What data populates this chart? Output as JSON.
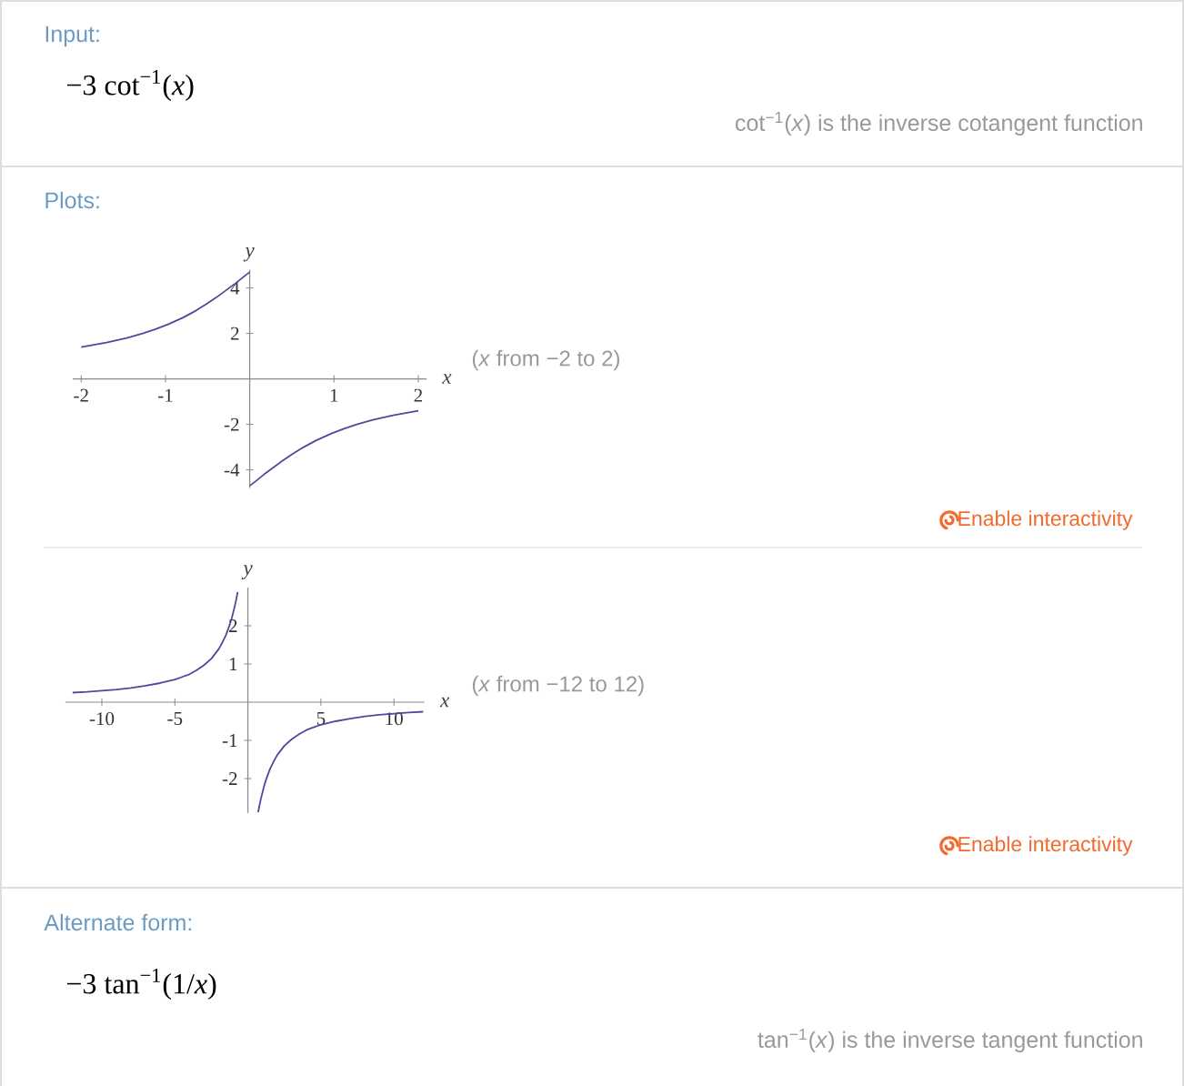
{
  "chart_data": [
    {
      "type": "other",
      "title": "Input:",
      "annotations": [
        "−3 cot$^{−1}$(*x*)",
        "cot$^{−1}$(*x*) is the inverse cotangent function"
      ]
    },
    {
      "type": "line",
      "title": "Plots:",
      "xlabel": "x",
      "ylabel": "y",
      "series": [
        {
          "color": "#4b4b9c",
          "x": [
            -2,
            -1.7,
            -1.46,
            -1.27,
            -1.11,
            -0.97,
            -0.79,
            -0.64,
            -0.51,
            -0.39,
            -0.28,
            -0.17,
            -0.07,
            0
          ],
          "values": [
            1.4,
            1.6,
            1.8,
            2.0,
            2.2,
            2.4,
            2.7,
            3.0,
            3.3,
            3.6,
            3.9,
            4.2,
            4.5,
            4.7
          ]
        },
        {
          "color": "#4b4b9c",
          "x": [
            0,
            0.07,
            0.17,
            0.28,
            0.39,
            0.51,
            0.64,
            0.79,
            0.97,
            1.11,
            1.27,
            1.46,
            1.7,
            2
          ],
          "values": [
            -4.7,
            -4.5,
            -4.2,
            -3.9,
            -3.6,
            -3.3,
            -3.0,
            -2.7,
            -2.4,
            -2.2,
            -2.0,
            -1.8,
            -1.6,
            -1.4
          ]
        }
      ],
      "xlim": [
        -2.1,
        2.1
      ],
      "ylim": [
        -4.8,
        4.8
      ],
      "xticks": [
        -2,
        -1,
        1,
        2
      ],
      "yticks": [
        -4,
        -2,
        2,
        4
      ],
      "marker": "none",
      "annotations": [
        "(*x* from −2 to 2)",
        "Enable interactivity"
      ]
    },
    {
      "type": "line",
      "xlabel": "x",
      "ylabel": "y",
      "series": [
        {
          "color": "#4b4b9c",
          "x": [
            -12,
            -11,
            -10,
            -9,
            -8,
            -7,
            -6,
            -5,
            -4.5,
            -4,
            -3.5,
            -3,
            -2.5,
            -2,
            -1.75,
            -1.5,
            -1.25,
            -1.1,
            -1,
            -0.9,
            -0.8,
            -0.7
          ],
          "values": [
            0.25,
            0.27,
            0.3,
            0.33,
            0.37,
            0.43,
            0.5,
            0.59,
            0.66,
            0.73,
            0.84,
            0.97,
            1.14,
            1.39,
            1.56,
            1.76,
            2.02,
            2.21,
            2.36,
            2.51,
            2.69,
            2.88
          ]
        },
        {
          "color": "#4b4b9c",
          "x": [
            0.7,
            0.8,
            0.9,
            1,
            1.1,
            1.25,
            1.5,
            1.75,
            2,
            2.5,
            3,
            3.5,
            4,
            4.5,
            5,
            6,
            7,
            8,
            9,
            10,
            11,
            12
          ],
          "values": [
            -2.88,
            -2.69,
            -2.51,
            -2.36,
            -2.21,
            -2.02,
            -1.76,
            -1.56,
            -1.39,
            -1.14,
            -0.97,
            -0.84,
            -0.73,
            -0.66,
            -0.59,
            -0.5,
            -0.43,
            -0.37,
            -0.33,
            -0.3,
            -0.27,
            -0.25
          ]
        }
      ],
      "xlim": [
        -12.5,
        12.1
      ],
      "ylim": [
        -2.9,
        3.0
      ],
      "xticks": [
        -10,
        -5,
        5,
        10
      ],
      "yticks": [
        -2,
        -1,
        1,
        2
      ],
      "marker": "none",
      "annotations": [
        "(*x* from −12 to 12)",
        "Enable interactivity"
      ]
    },
    {
      "type": "other",
      "title": "Alternate form:",
      "annotations": [
        "−3 tan$^{−1}$(1/*x*)",
        "tan$^{−1}$(*x*) is the inverse tangent function"
      ]
    }
  ]
}
